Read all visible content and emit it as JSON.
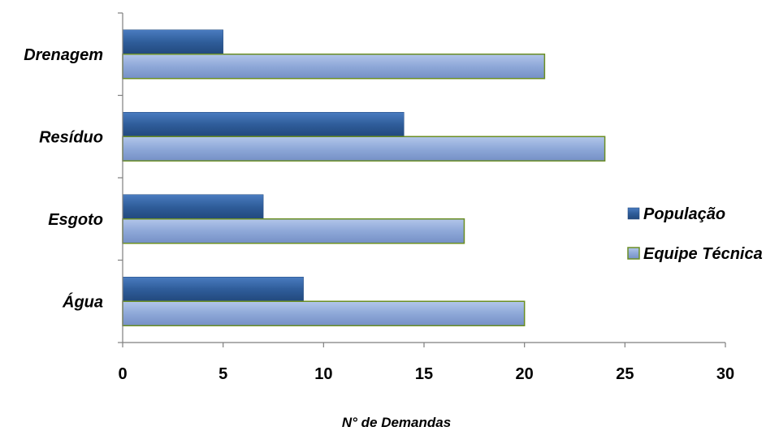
{
  "chart_data": {
    "type": "bar",
    "orientation": "horizontal",
    "categories": [
      "Água",
      "Esgoto",
      "Resíduo",
      "Drenagem"
    ],
    "series": [
      {
        "name": "População",
        "values": [
          9,
          7,
          14,
          5
        ],
        "color": "#2f5d9a"
      },
      {
        "name": "Equipe Técnica",
        "values": [
          20,
          17,
          24,
          21
        ],
        "color": "#8ea8d8",
        "border_color": "#6b8e23"
      }
    ],
    "xlabel": "N° de Demandas",
    "ylabel": "",
    "xlim": [
      0,
      30
    ],
    "xticks": [
      "0",
      "5",
      "10",
      "15",
      "20",
      "25",
      "30"
    ],
    "grid": false,
    "legend_position": "right"
  }
}
